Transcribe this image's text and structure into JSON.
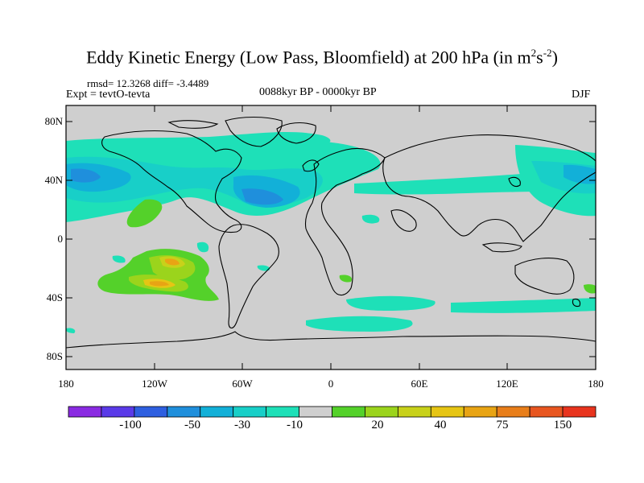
{
  "title_main": "Eddy Kinetic Energy (Low Pass, Bloomfield) at 200 hPa (in m",
  "title_sup1": "2",
  "title_mid": "s",
  "title_sup2": "-2",
  "title_end": ")",
  "stats": "rmsd= 12.3268 diff= -3.4489",
  "expt": "Expt = tevtO-tevta",
  "period": "0088kyr BP - 0000kyr BP",
  "season": "DJF",
  "lat_ticks": [
    "80N",
    "40N",
    "0",
    "40S",
    "80S"
  ],
  "lon_ticks": [
    "180",
    "120W",
    "60W",
    "0",
    "60E",
    "120E",
    "180"
  ],
  "colorbar_labels": [
    "-100",
    "-50",
    "-30",
    "-10",
    "20",
    "40",
    "75",
    "150"
  ],
  "colorbar_colors": [
    "#8a2be2",
    "#5a3ae8",
    "#2e5fe0",
    "#1f8fdc",
    "#12b0d8",
    "#18cfc8",
    "#1ee0b8",
    "#cfcfcf",
    "#54d12a",
    "#9bd41c",
    "#c8d11a",
    "#e6c514",
    "#e8a414",
    "#e87e1a",
    "#e85620",
    "#e8341e"
  ],
  "land_color": "#cfcfcf"
}
